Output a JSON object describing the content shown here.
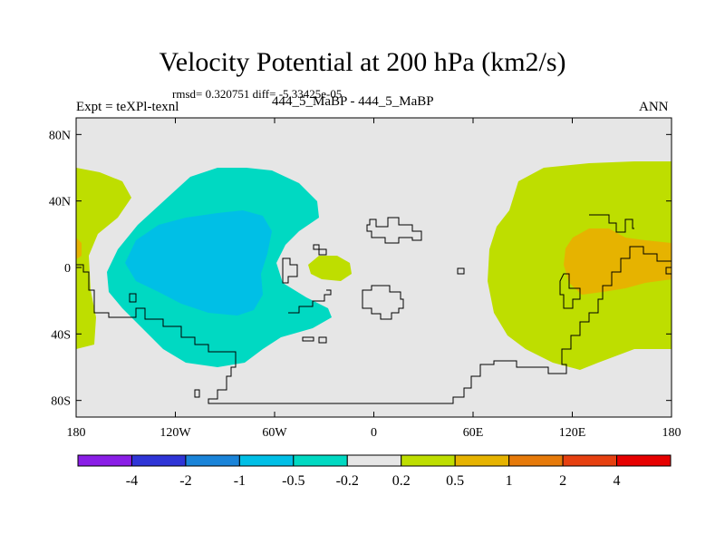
{
  "chart_data": {
    "type": "heatmap",
    "title": "Velocity Potential at 200 hPa (km2/s)",
    "stats_text": "rmsd= 0.320751 diff= -5.33425e-05",
    "left_label": "Expt = teXPl-texnl",
    "center_label": "444_5_MaBP - 444_5_MaBP",
    "right_label": "ANN",
    "x_ticks": [
      "180",
      "120W",
      "60W",
      "0",
      "60E",
      "120E",
      "180"
    ],
    "x_tick_values": [
      -180,
      -120,
      -60,
      0,
      60,
      120,
      180
    ],
    "y_ticks": [
      "80N",
      "40N",
      "0",
      "40S",
      "80S"
    ],
    "y_tick_values": [
      80,
      40,
      0,
      -40,
      -80
    ],
    "xlim": [
      -180,
      180
    ],
    "ylim": [
      -90,
      90
    ],
    "colorbar": {
      "levels": [
        "-4",
        "-2",
        "-1",
        "-0.5",
        "-0.2",
        "0.2",
        "0.5",
        "1",
        "2",
        "4"
      ],
      "colors": [
        "#8a1ee6",
        "#2f35d7",
        "#1a84d9",
        "#00bfe6",
        "#00d9c2",
        "#e6e6e6",
        "#bede00",
        "#e6b300",
        "#e67a0a",
        "#e64010",
        "#e60000"
      ]
    },
    "regions": [
      {
        "name": "central-pacific-negative",
        "band": "-0.5 to -0.2",
        "approx_center": [
          -105,
          15
        ]
      },
      {
        "name": "central-pacific-core",
        "band": "-1 to -0.5",
        "approx_center": [
          -105,
          5
        ]
      },
      {
        "name": "atlantic-positive",
        "band": "0.2 to 0.5",
        "approx_center": [
          -25,
          0
        ]
      },
      {
        "name": "indo-pacific-positive",
        "band": "0.2 to 0.5",
        "approx_center": [
          110,
          10
        ]
      },
      {
        "name": "maritime-continent-max",
        "band": "0.5 to 1",
        "approx_center": [
          140,
          5
        ]
      },
      {
        "name": "dateline-west-positive",
        "band": "0.2 to 0.5",
        "approx_center": [
          -175,
          10
        ]
      }
    ]
  }
}
